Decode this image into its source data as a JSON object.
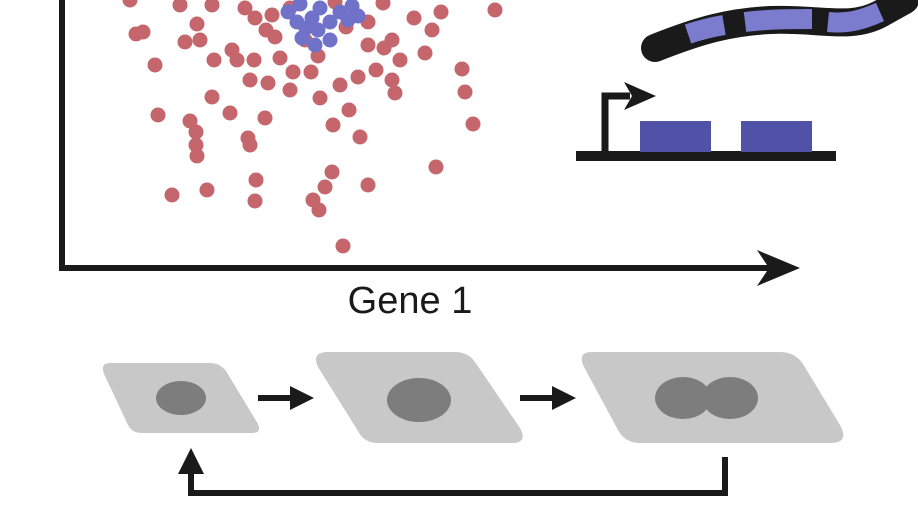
{
  "x_axis_label": "Gene 1",
  "colors": {
    "red_dots": "#c4666c",
    "blue_dots": "#6f72c8",
    "axis": "#1a1a1a",
    "exon": "#4f52a6",
    "cell_body": "#c8c8c8",
    "nucleus": "#7d7d7d",
    "rna_light": "#7b7ccd"
  },
  "diagram": {
    "scatter": "cell-expression-scatter",
    "gene_model": "gene-with-two-exons",
    "transcript": "rna-transcript",
    "cell_cycle": [
      "small-cell",
      "growing-cell",
      "dividing-cell"
    ]
  }
}
